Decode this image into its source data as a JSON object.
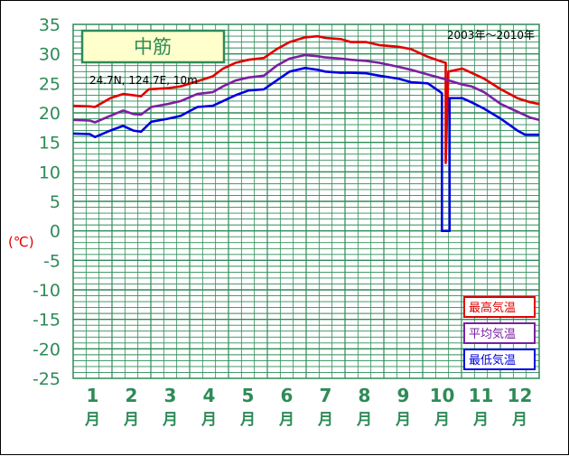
{
  "chart_data": {
    "type": "line",
    "station": "中筋",
    "location": "24.7N, 124.7E, 10m",
    "period": "2003年～2010年",
    "unit_label": "(℃)",
    "ylim": [
      -25,
      35
    ],
    "y_ticks": [
      35,
      30,
      25,
      20,
      15,
      10,
      5,
      0,
      -5,
      -10,
      -15,
      -20,
      -25
    ],
    "month_labels": [
      "1",
      "2",
      "3",
      "4",
      "5",
      "6",
      "7",
      "8",
      "9",
      "10",
      "11",
      "12"
    ],
    "month_suffix": "月",
    "grid": true,
    "legend_position": "bottom-right",
    "x_unit": "day_of_year",
    "series": [
      {
        "name": "最高気温",
        "color": "#e00000",
        "points": [
          [
            1,
            21.2
          ],
          [
            14,
            21.1
          ],
          [
            18,
            21.0
          ],
          [
            30,
            22.5
          ],
          [
            40,
            23.2
          ],
          [
            48,
            23.0
          ],
          [
            54,
            22.8
          ],
          [
            60,
            24.0
          ],
          [
            75,
            24.2
          ],
          [
            85,
            24.5
          ],
          [
            100,
            25.5
          ],
          [
            110,
            26.2
          ],
          [
            118,
            27.5
          ],
          [
            128,
            28.5
          ],
          [
            138,
            29.0
          ],
          [
            150,
            29.3
          ],
          [
            160,
            30.8
          ],
          [
            170,
            32.0
          ],
          [
            182,
            32.8
          ],
          [
            192,
            33.0
          ],
          [
            198,
            32.7
          ],
          [
            210,
            32.5
          ],
          [
            218,
            32.0
          ],
          [
            230,
            32.0
          ],
          [
            240,
            31.5
          ],
          [
            255,
            31.2
          ],
          [
            265,
            30.8
          ],
          [
            278,
            29.5
          ],
          [
            290,
            28.6
          ],
          [
            292,
            28.5
          ],
          [
            292,
            11.5
          ],
          [
            294,
            27.0
          ],
          [
            305,
            27.5
          ],
          [
            312,
            26.8
          ],
          [
            322,
            25.8
          ],
          [
            335,
            24.0
          ],
          [
            348,
            22.5
          ],
          [
            358,
            21.8
          ],
          [
            365,
            21.5
          ]
        ]
      },
      {
        "name": "平均気温",
        "color": "#7b1fa2",
        "points": [
          [
            1,
            18.8
          ],
          [
            14,
            18.7
          ],
          [
            18,
            18.4
          ],
          [
            30,
            19.5
          ],
          [
            40,
            20.4
          ],
          [
            48,
            19.8
          ],
          [
            54,
            19.7
          ],
          [
            62,
            21.0
          ],
          [
            75,
            21.5
          ],
          [
            85,
            22.0
          ],
          [
            98,
            23.2
          ],
          [
            110,
            23.5
          ],
          [
            118,
            24.5
          ],
          [
            128,
            25.5
          ],
          [
            138,
            26.0
          ],
          [
            150,
            26.3
          ],
          [
            160,
            28.0
          ],
          [
            170,
            29.2
          ],
          [
            182,
            29.8
          ],
          [
            192,
            29.6
          ],
          [
            198,
            29.4
          ],
          [
            210,
            29.2
          ],
          [
            218,
            29.0
          ],
          [
            230,
            28.8
          ],
          [
            240,
            28.5
          ],
          [
            255,
            27.8
          ],
          [
            265,
            27.3
          ],
          [
            278,
            26.5
          ],
          [
            290,
            25.8
          ],
          [
            305,
            24.8
          ],
          [
            312,
            24.5
          ],
          [
            322,
            23.5
          ],
          [
            335,
            21.5
          ],
          [
            348,
            20.2
          ],
          [
            358,
            19.2
          ],
          [
            365,
            18.8
          ]
        ]
      },
      {
        "name": "最低気温",
        "color": "#0000e0",
        "points": [
          [
            1,
            16.5
          ],
          [
            14,
            16.4
          ],
          [
            18,
            15.9
          ],
          [
            30,
            17.0
          ],
          [
            40,
            17.8
          ],
          [
            48,
            17.0
          ],
          [
            54,
            16.8
          ],
          [
            62,
            18.5
          ],
          [
            75,
            19.0
          ],
          [
            85,
            19.5
          ],
          [
            98,
            21.0
          ],
          [
            110,
            21.2
          ],
          [
            118,
            22.0
          ],
          [
            128,
            23.0
          ],
          [
            138,
            23.8
          ],
          [
            150,
            24.0
          ],
          [
            160,
            25.5
          ],
          [
            170,
            27.0
          ],
          [
            182,
            27.6
          ],
          [
            192,
            27.3
          ],
          [
            198,
            27.0
          ],
          [
            210,
            26.8
          ],
          [
            218,
            26.8
          ],
          [
            230,
            26.7
          ],
          [
            240,
            26.3
          ],
          [
            255,
            25.8
          ],
          [
            265,
            25.2
          ],
          [
            278,
            25.0
          ],
          [
            288,
            23.5
          ],
          [
            289,
            23.3
          ],
          [
            289,
            0
          ],
          [
            295,
            0
          ],
          [
            295,
            22.5
          ],
          [
            305,
            22.5
          ],
          [
            312,
            21.8
          ],
          [
            322,
            20.7
          ],
          [
            335,
            19.0
          ],
          [
            348,
            17.0
          ],
          [
            354,
            16.3
          ],
          [
            365,
            16.3
          ]
        ]
      }
    ]
  }
}
